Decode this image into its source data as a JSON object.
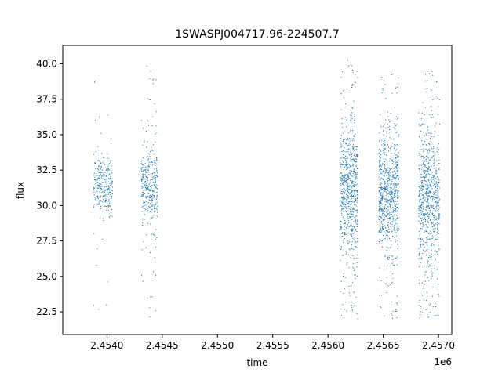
{
  "chart_data": {
    "type": "scatter",
    "title": "1SWASPJ004717.96-224507.7",
    "xlabel": "time",
    "ylabel": "flux",
    "x_offset_label": "1e6",
    "xlim": [
      2.4536,
      2.45712
    ],
    "ylim": [
      20.9,
      41.3
    ],
    "x_ticks": [
      2.454,
      2.4545,
      2.455,
      2.4555,
      2.456,
      2.4565,
      2.457
    ],
    "x_tick_labels": [
      "2.4540",
      "2.4545",
      "2.4550",
      "2.4555",
      "2.4560",
      "2.4565",
      "2.4570"
    ],
    "y_ticks": [
      22.5,
      25.0,
      27.5,
      30.0,
      32.5,
      35.0,
      37.5,
      40.0
    ],
    "y_tick_labels": [
      "22.5",
      "25.0",
      "27.5",
      "30.0",
      "32.5",
      "35.0",
      "37.5",
      "40.0"
    ],
    "grid": false,
    "marker_color": "#1f77b4",
    "clusters": [
      {
        "x_start": 2.45388,
        "x_end": 2.45405,
        "points": 260,
        "core_low": 29.5,
        "core_high": 33.5,
        "outlier_low": 22.5,
        "outlier_high": 39.3,
        "outlier_count": 14
      },
      {
        "x_start": 2.45431,
        "x_end": 2.45446,
        "points": 320,
        "core_low": 28.5,
        "core_high": 34.0,
        "outlier_low": 22.0,
        "outlier_high": 40.0,
        "outlier_count": 40
      },
      {
        "x_start": 2.45611,
        "x_end": 2.45627,
        "points": 620,
        "core_low": 26.5,
        "core_high": 35.5,
        "outlier_low": 22.0,
        "outlier_high": 40.3,
        "outlier_count": 70
      },
      {
        "x_start": 2.45646,
        "x_end": 2.45664,
        "points": 700,
        "core_low": 26.5,
        "core_high": 35.0,
        "outlier_low": 22.0,
        "outlier_high": 39.3,
        "outlier_count": 70
      },
      {
        "x_start": 2.45682,
        "x_end": 2.45701,
        "points": 680,
        "core_low": 26.0,
        "core_high": 35.5,
        "outlier_low": 21.8,
        "outlier_high": 40.3,
        "outlier_count": 80
      }
    ]
  }
}
